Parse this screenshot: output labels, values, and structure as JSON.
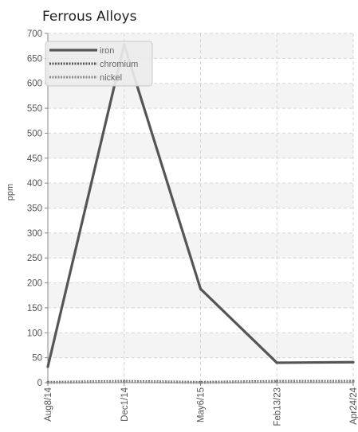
{
  "chart_data": {
    "type": "line",
    "title": "Ferrous Alloys",
    "xlabel": "",
    "ylabel": "ppm",
    "categories": [
      "Aug8/14",
      "Dec1/14",
      "May6/15",
      "Feb13/23",
      "Apr24/24"
    ],
    "ylim": [
      0,
      700
    ],
    "yticks": [
      0,
      50,
      100,
      150,
      200,
      250,
      300,
      350,
      400,
      450,
      500,
      550,
      600,
      650,
      700
    ],
    "grid": true,
    "legend_position": "top-left",
    "series": [
      {
        "name": "iron",
        "values": [
          32,
          678,
          188,
          40,
          41
        ],
        "color": "#555555",
        "style": "solid"
      },
      {
        "name": "chromium",
        "values": [
          1,
          3,
          1,
          3,
          3
        ],
        "color": "#555555",
        "style": "dotted"
      },
      {
        "name": "nickel",
        "values": [
          0,
          2,
          0,
          2,
          2
        ],
        "color": "#8a8a8a",
        "style": "dotted"
      }
    ]
  }
}
